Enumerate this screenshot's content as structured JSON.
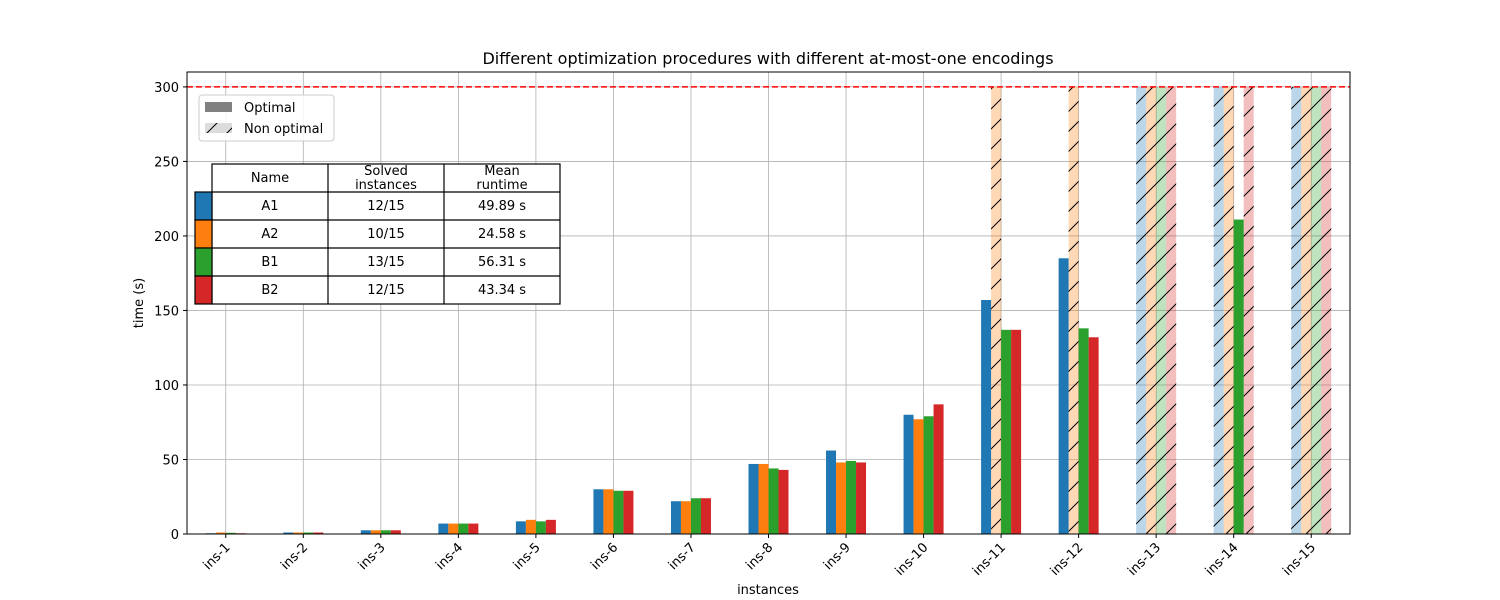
{
  "chart_data": {
    "type": "bar",
    "title": "Different optimization procedures with different at-most-one encodings",
    "xlabel": "instances",
    "ylabel": "time (s)",
    "ylim": [
      0,
      310
    ],
    "yticks": [
      0,
      50,
      100,
      150,
      200,
      250,
      300
    ],
    "grid": true,
    "timeout_line": 300,
    "timeout_line_color": "#ff0000",
    "categories": [
      "ins-1",
      "ins-2",
      "ins-3",
      "ins-4",
      "ins-5",
      "ins-6",
      "ins-7",
      "ins-8",
      "ins-9",
      "ins-10",
      "ins-11",
      "ins-12",
      "ins-13",
      "ins-14",
      "ins-15"
    ],
    "series": [
      {
        "name": "A1",
        "color": "#1f77b4",
        "values": [
          0.5,
          1,
          2.5,
          7,
          8.5,
          30,
          22,
          47,
          56,
          80,
          157,
          185,
          300,
          300,
          300
        ],
        "optimal": [
          true,
          true,
          true,
          true,
          true,
          true,
          true,
          true,
          true,
          true,
          true,
          true,
          false,
          false,
          false
        ]
      },
      {
        "name": "A2",
        "color": "#ff7f0e",
        "values": [
          1,
          1,
          2.5,
          7,
          9.5,
          30,
          22,
          47,
          48,
          77,
          300,
          300,
          300,
          300,
          300
        ],
        "optimal": [
          true,
          true,
          true,
          true,
          true,
          true,
          true,
          true,
          true,
          true,
          false,
          false,
          false,
          false,
          false
        ]
      },
      {
        "name": "B1",
        "color": "#2ca02c",
        "values": [
          0.8,
          1,
          2.5,
          7,
          8.5,
          29,
          24,
          44,
          49,
          79,
          137,
          138,
          300,
          211,
          300
        ],
        "optimal": [
          true,
          true,
          true,
          true,
          true,
          true,
          true,
          true,
          true,
          true,
          true,
          true,
          false,
          true,
          false
        ]
      },
      {
        "name": "B2",
        "color": "#d62728",
        "values": [
          0.5,
          1,
          2.5,
          7,
          9.5,
          29,
          24,
          43,
          48,
          87,
          137,
          132,
          300,
          300,
          300
        ],
        "optimal": [
          true,
          true,
          true,
          true,
          true,
          true,
          true,
          true,
          true,
          true,
          true,
          true,
          false,
          false,
          false
        ]
      }
    ],
    "legend": {
      "position": "top-left",
      "entries": [
        {
          "label": "Optimal",
          "style": "solid"
        },
        {
          "label": "Non optimal",
          "style": "hatched"
        }
      ]
    },
    "table": {
      "headers": [
        "Name",
        [
          "Solved",
          "instances"
        ],
        [
          "Mean",
          "runtime"
        ]
      ],
      "rows": [
        {
          "color": "#1f77b4",
          "name": "A1",
          "solved": "12/15",
          "runtime": "49.89 s"
        },
        {
          "color": "#ff7f0e",
          "name": "A2",
          "solved": "10/15",
          "runtime": "24.58 s"
        },
        {
          "color": "#2ca02c",
          "name": "B1",
          "solved": "13/15",
          "runtime": "56.31 s"
        },
        {
          "color": "#d62728",
          "name": "B2",
          "solved": "12/15",
          "runtime": "43.34 s"
        }
      ]
    }
  }
}
